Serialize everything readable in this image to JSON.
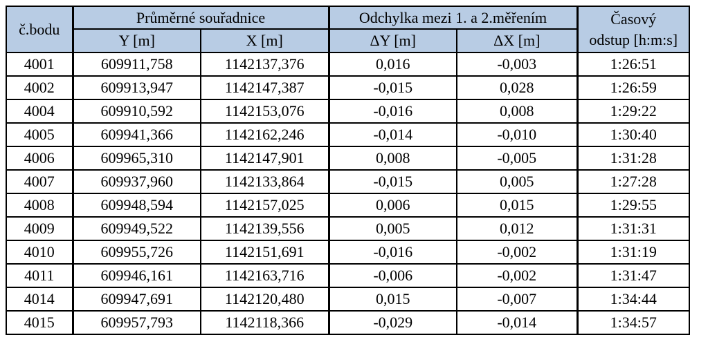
{
  "table": {
    "headers": {
      "point_id": "č.bodu",
      "avg_coords": "Průměrné souřadnice",
      "deviation": "Odchylka mezi 1. a  2.měřením",
      "time_gap_line1": "Časový",
      "time_gap_line2": "odstup [h:m:s]",
      "y": "Y [m]",
      "x": "X [m]",
      "dy": "ΔY [m]",
      "dx": "ΔX [m]"
    },
    "rows": [
      {
        "id": "4001",
        "y": "609911,758",
        "x": "1142137,376",
        "dy": "0,016",
        "dx": "-0,003",
        "t": "1:26:51"
      },
      {
        "id": "4002",
        "y": "609913,947",
        "x": "1142147,387",
        "dy": "-0,015",
        "dx": "0,028",
        "t": "1:26:59"
      },
      {
        "id": "4004",
        "y": "609910,592",
        "x": "1142153,076",
        "dy": "-0,016",
        "dx": "0,008",
        "t": "1:29:22"
      },
      {
        "id": "4005",
        "y": "609941,366",
        "x": "1142162,246",
        "dy": "-0,014",
        "dx": "-0,010",
        "t": "1:30:40"
      },
      {
        "id": "4006",
        "y": "609965,310",
        "x": "1142147,901",
        "dy": "0,008",
        "dx": "-0,005",
        "t": "1:31:28"
      },
      {
        "id": "4007",
        "y": "609937,960",
        "x": "1142133,864",
        "dy": "-0,015",
        "dx": "0,005",
        "t": "1:27:28"
      },
      {
        "id": "4008",
        "y": "609948,594",
        "x": "1142157,025",
        "dy": "0,006",
        "dx": "0,015",
        "t": "1:29:55"
      },
      {
        "id": "4009",
        "y": "609949,522",
        "x": "1142139,556",
        "dy": "0,005",
        "dx": "0,012",
        "t": "1:31:31"
      },
      {
        "id": "4010",
        "y": "609955,726",
        "x": "1142151,691",
        "dy": "-0,016",
        "dx": "-0,002",
        "t": "1:31:19"
      },
      {
        "id": "4011",
        "y": "609946,161",
        "x": "1142163,716",
        "dy": "-0,006",
        "dx": "-0,002",
        "t": "1:31:47"
      },
      {
        "id": "4014",
        "y": "609947,691",
        "x": "1142120,480",
        "dy": "0,015",
        "dx": "-0,007",
        "t": "1:34:44"
      },
      {
        "id": "4015",
        "y": "609957,793",
        "x": "1142118,366",
        "dy": "-0,029",
        "dx": "-0,014",
        "t": "1:34:57"
      }
    ]
  },
  "colors": {
    "header_background": "#b8cce4",
    "border": "#000000"
  }
}
